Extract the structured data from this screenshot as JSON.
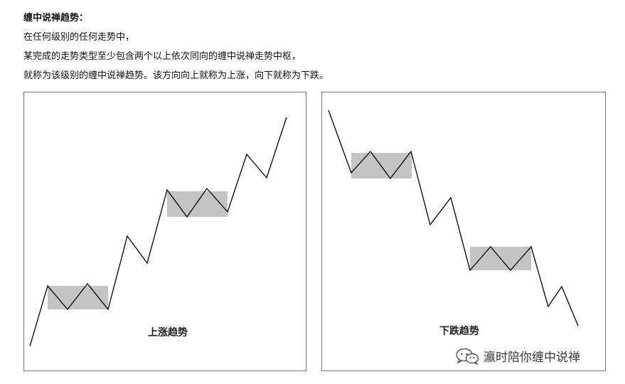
{
  "intro": {
    "heading": "缠中说禅趋势：",
    "lines": [
      "在任何级别的任何走势中，",
      "某完成的走势类型至少包含两个以上依次同向的缠中说禅走势中枢，",
      "就称为该级别的缠中说禅趋势。该方向向上就称为上涨，向下就称为下跌。"
    ]
  },
  "panels": {
    "up": {
      "caption": "上涨趋势"
    },
    "down": {
      "caption": "下跌趋势"
    }
  },
  "colors": {
    "zone_fill": "#c4c4c4",
    "line": "#000000",
    "border": "#777777"
  },
  "watermark": {
    "text": "瀛时陪你缠中说禅",
    "icon": "wechat-logo-icon"
  }
}
